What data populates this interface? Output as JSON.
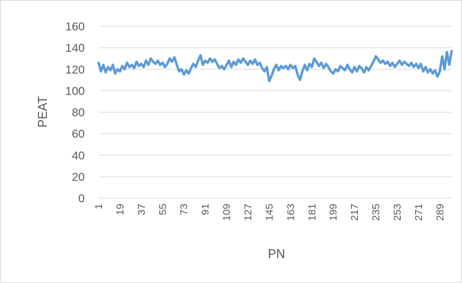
{
  "chart_data": {
    "type": "line",
    "title": "",
    "xlabel": "PN",
    "ylabel": "PEAT",
    "ylim": [
      0,
      160
    ],
    "y_ticks": [
      "0",
      "20",
      "40",
      "60",
      "80",
      "100",
      "120",
      "140",
      "160"
    ],
    "x_tick_labels": [
      "1",
      "19",
      "37",
      "55",
      "73",
      "91",
      "109",
      "127",
      "145",
      "163",
      "181",
      "199",
      "217",
      "235",
      "253",
      "271",
      "289"
    ],
    "x_range": [
      1,
      299
    ],
    "grid": "horizontal",
    "legend": "none",
    "line_color": "#5b9bd5",
    "series": [
      {
        "values": [
          [
            1,
            126
          ],
          [
            3,
            118
          ],
          [
            5,
            124
          ],
          [
            7,
            117
          ],
          [
            9,
            122
          ],
          [
            11,
            119
          ],
          [
            13,
            124
          ],
          [
            15,
            116
          ],
          [
            17,
            120
          ],
          [
            19,
            118
          ],
          [
            21,
            123
          ],
          [
            23,
            120
          ],
          [
            25,
            126
          ],
          [
            27,
            122
          ],
          [
            29,
            124
          ],
          [
            31,
            121
          ],
          [
            33,
            127
          ],
          [
            35,
            123
          ],
          [
            37,
            125
          ],
          [
            39,
            122
          ],
          [
            41,
            128
          ],
          [
            43,
            124
          ],
          [
            45,
            130
          ],
          [
            47,
            127
          ],
          [
            49,
            125
          ],
          [
            51,
            128
          ],
          [
            53,
            124
          ],
          [
            55,
            126
          ],
          [
            57,
            122
          ],
          [
            59,
            125
          ],
          [
            61,
            130
          ],
          [
            63,
            127
          ],
          [
            65,
            131
          ],
          [
            67,
            124
          ],
          [
            69,
            118
          ],
          [
            71,
            120
          ],
          [
            73,
            115
          ],
          [
            75,
            119
          ],
          [
            77,
            116
          ],
          [
            79,
            121
          ],
          [
            81,
            125
          ],
          [
            83,
            122
          ],
          [
            85,
            128
          ],
          [
            87,
            133
          ],
          [
            89,
            124
          ],
          [
            91,
            128
          ],
          [
            93,
            126
          ],
          [
            95,
            130
          ],
          [
            97,
            127
          ],
          [
            99,
            129
          ],
          [
            101,
            125
          ],
          [
            103,
            121
          ],
          [
            105,
            123
          ],
          [
            107,
            120
          ],
          [
            109,
            124
          ],
          [
            111,
            128
          ],
          [
            113,
            122
          ],
          [
            115,
            127
          ],
          [
            117,
            124
          ],
          [
            119,
            129
          ],
          [
            121,
            126
          ],
          [
            123,
            130
          ],
          [
            125,
            127
          ],
          [
            127,
            124
          ],
          [
            129,
            128
          ],
          [
            131,
            125
          ],
          [
            133,
            129
          ],
          [
            135,
            124
          ],
          [
            137,
            126
          ],
          [
            139,
            121
          ],
          [
            141,
            118
          ],
          [
            143,
            122
          ],
          [
            145,
            109
          ],
          [
            147,
            114
          ],
          [
            149,
            120
          ],
          [
            151,
            124
          ],
          [
            153,
            119
          ],
          [
            155,
            123
          ],
          [
            157,
            121
          ],
          [
            159,
            123
          ],
          [
            161,
            120
          ],
          [
            163,
            124
          ],
          [
            165,
            121
          ],
          [
            167,
            123
          ],
          [
            169,
            115
          ],
          [
            171,
            110
          ],
          [
            173,
            118
          ],
          [
            175,
            124
          ],
          [
            177,
            119
          ],
          [
            179,
            125
          ],
          [
            181,
            122
          ],
          [
            183,
            130
          ],
          [
            185,
            127
          ],
          [
            187,
            123
          ],
          [
            189,
            126
          ],
          [
            191,
            121
          ],
          [
            193,
            125
          ],
          [
            195,
            122
          ],
          [
            197,
            118
          ],
          [
            199,
            116
          ],
          [
            201,
            120
          ],
          [
            203,
            118
          ],
          [
            205,
            123
          ],
          [
            207,
            121
          ],
          [
            209,
            119
          ],
          [
            211,
            124
          ],
          [
            213,
            120
          ],
          [
            215,
            117
          ],
          [
            217,
            122
          ],
          [
            219,
            118
          ],
          [
            221,
            123
          ],
          [
            223,
            121
          ],
          [
            225,
            117
          ],
          [
            227,
            122
          ],
          [
            229,
            119
          ],
          [
            231,
            123
          ],
          [
            233,
            127
          ],
          [
            235,
            132
          ],
          [
            237,
            129
          ],
          [
            239,
            126
          ],
          [
            241,
            128
          ],
          [
            243,
            125
          ],
          [
            245,
            127
          ],
          [
            247,
            123
          ],
          [
            249,
            126
          ],
          [
            251,
            122
          ],
          [
            253,
            125
          ],
          [
            255,
            128
          ],
          [
            257,
            124
          ],
          [
            259,
            127
          ],
          [
            261,
            125
          ],
          [
            263,
            123
          ],
          [
            265,
            126
          ],
          [
            267,
            122
          ],
          [
            269,
            125
          ],
          [
            271,
            121
          ],
          [
            273,
            125
          ],
          [
            275,
            118
          ],
          [
            277,
            122
          ],
          [
            279,
            117
          ],
          [
            281,
            120
          ],
          [
            283,
            116
          ],
          [
            285,
            119
          ],
          [
            287,
            113
          ],
          [
            289,
            118
          ],
          [
            291,
            132
          ],
          [
            293,
            120
          ],
          [
            295,
            136
          ],
          [
            297,
            124
          ],
          [
            299,
            137
          ]
        ]
      }
    ]
  }
}
